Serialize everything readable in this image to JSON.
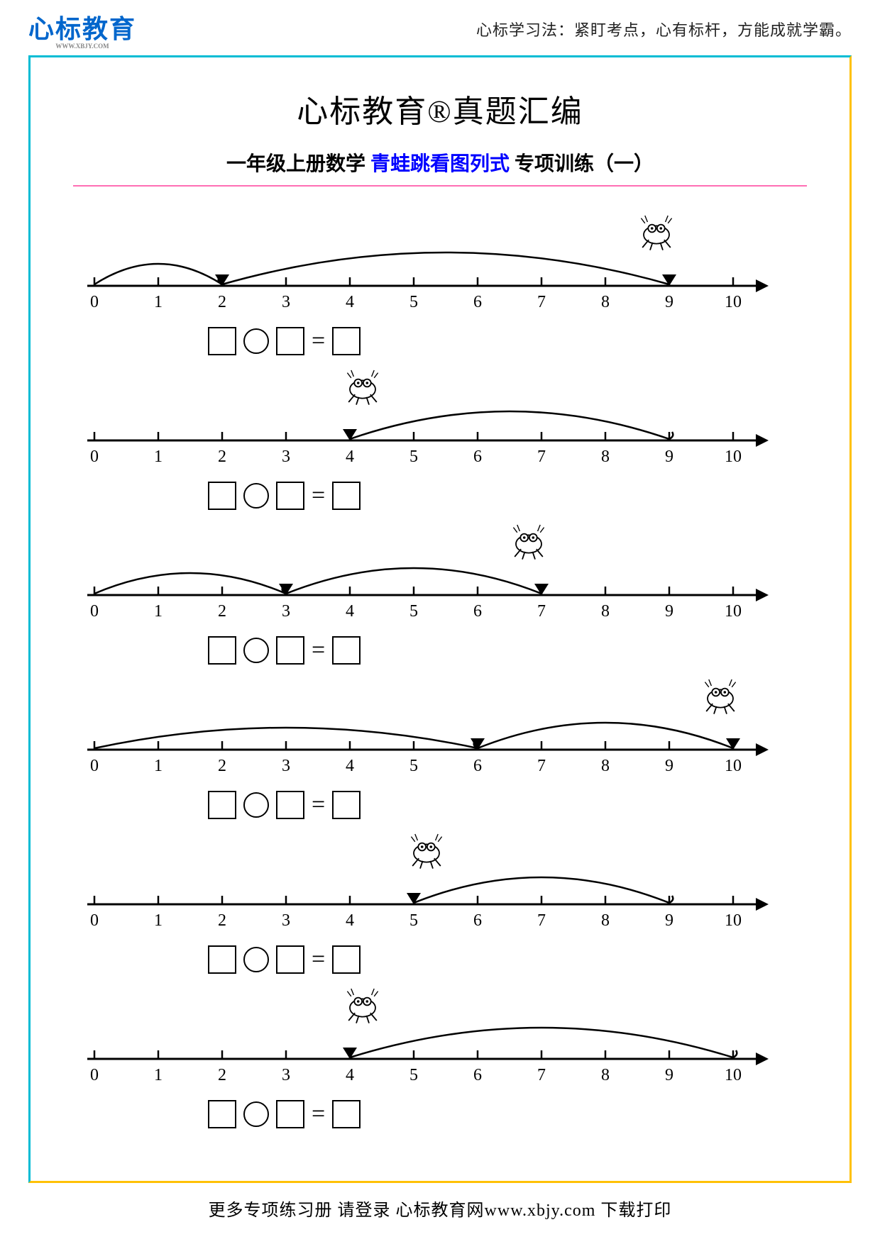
{
  "header": {
    "logo_text": "心标教育",
    "logo_sub": "WWW.XBJY.COM",
    "right_text": "心标学习法：紧盯考点，心有标杆，方能成就学霸。"
  },
  "title": "心标教育®真题汇编",
  "subtitle_left": "一年级上册数学",
  "subtitle_highlight": "青蛙跳看图列式",
  "subtitle_right": "专项训练（一）",
  "footer": "更多专项练习册 请登录 心标教育网www.xbjy.com 下载打印",
  "number_line": {
    "min": 0,
    "max": 10,
    "tick_labels": [
      "0",
      "1",
      "2",
      "3",
      "4",
      "5",
      "6",
      "7",
      "8",
      "9",
      "10"
    ],
    "axis_color": "#000000",
    "axis_stroke_width": 3,
    "tick_height": 12,
    "label_fontsize": 24,
    "frog_icon": "🐸"
  },
  "colors": {
    "frame_top_left": "#00bcd4",
    "frame_bottom_right": "#ffc107",
    "divider": "#ff6eb4",
    "logo": "#0066cc",
    "highlight": "#0000ff"
  },
  "problems": [
    {
      "first_hop": {
        "from": 0,
        "to": 2
      },
      "second_hop": {
        "from": 2,
        "to": 9
      },
      "frog_at": 9,
      "frog_side": "right"
    },
    {
      "first_hop": null,
      "second_hop": {
        "from": 4,
        "to": 9
      },
      "frog_at": 4,
      "frog_side": "left"
    },
    {
      "first_hop": {
        "from": 0,
        "to": 3
      },
      "second_hop": {
        "from": 3,
        "to": 7
      },
      "frog_at": 7,
      "frog_side": "right"
    },
    {
      "first_hop": {
        "from": 0,
        "to": 6
      },
      "second_hop": {
        "from": 6,
        "to": 10
      },
      "frog_at": 10,
      "frog_side": "right"
    },
    {
      "first_hop": null,
      "second_hop": {
        "from": 5,
        "to": 9
      },
      "frog_at": 5,
      "frog_side": "left"
    },
    {
      "first_hop": null,
      "second_hop": {
        "from": 4,
        "to": 10
      },
      "frog_at": 4,
      "frog_side": "left"
    }
  ],
  "equation_template": {
    "equals": "="
  }
}
